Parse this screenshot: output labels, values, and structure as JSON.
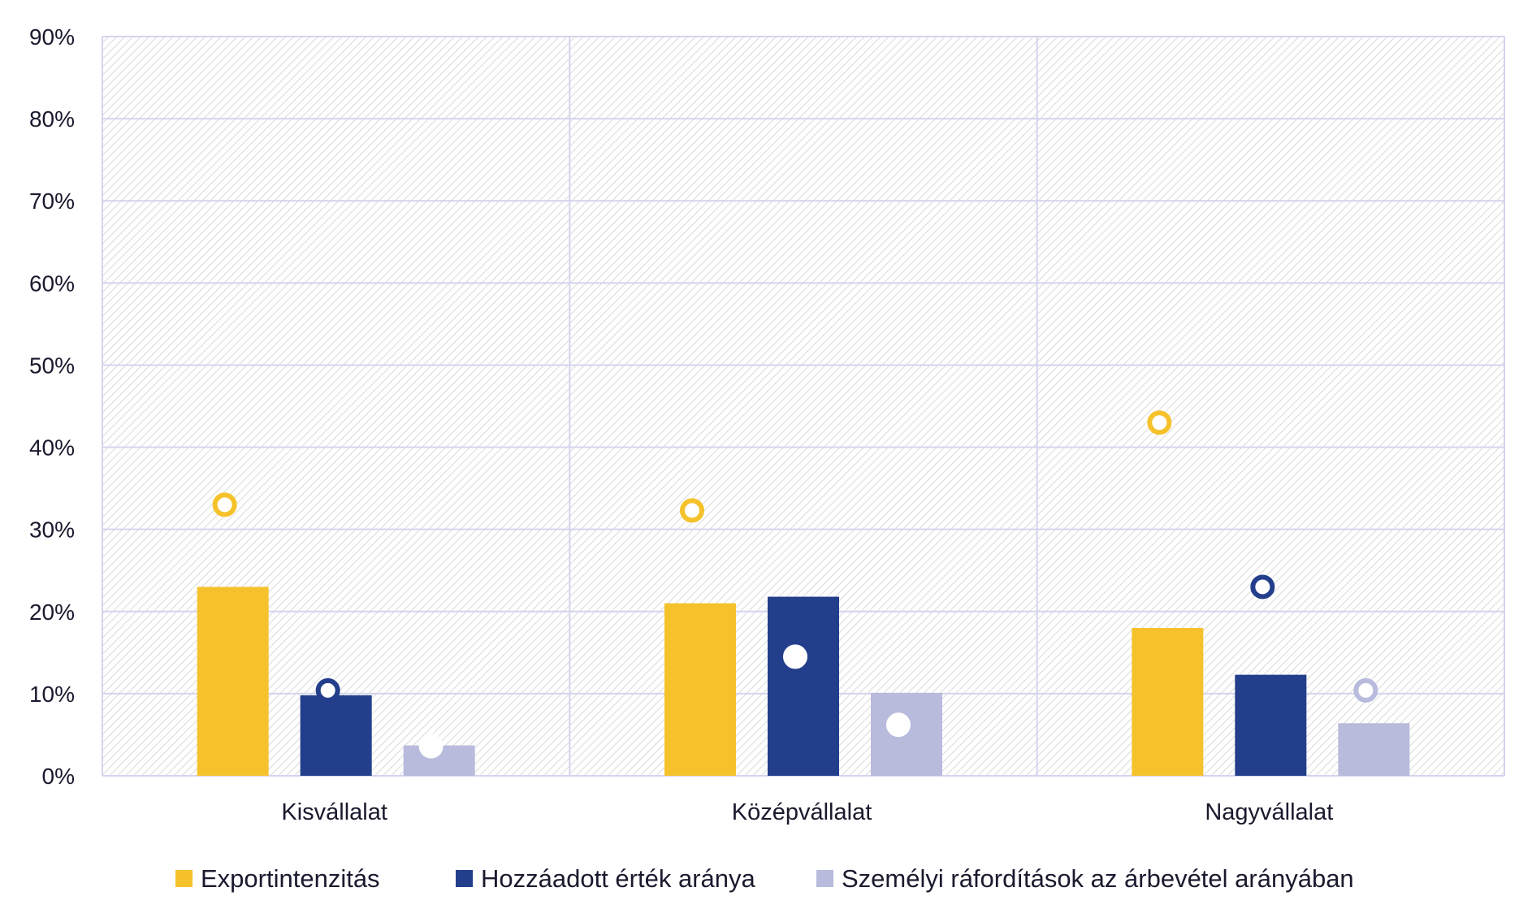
{
  "chart_data": {
    "type": "bar",
    "title": "",
    "xlabel": "",
    "ylabel": "",
    "ylim": [
      0,
      90
    ],
    "y_ticks": [
      "0%",
      "10%",
      "20%",
      "30%",
      "40%",
      "50%",
      "60%",
      "70%",
      "80%",
      "90%"
    ],
    "y_tick_values": [
      0,
      10,
      20,
      30,
      40,
      50,
      60,
      70,
      80,
      90
    ],
    "categories": [
      "Kisvállalat",
      "Középvállalat",
      "Nagyvállalat"
    ],
    "series": [
      {
        "name": "Exportintenzitás",
        "color": "#f5c22c",
        "values": [
          23.0,
          21.0,
          18.0
        ],
        "markers": [
          33.0,
          32.3,
          43.0
        ]
      },
      {
        "name": "Hozzáadott érték aránya",
        "color": "#233e8b",
        "values": [
          9.8,
          21.8,
          12.3
        ],
        "markers": [
          10.4,
          14.5,
          23.0
        ]
      },
      {
        "name": "Személyi ráfordítások az árbevétel arányában",
        "color": "#b8bbdc",
        "values": [
          3.7,
          10.1,
          6.4
        ],
        "markers": [
          3.6,
          6.2,
          10.4
        ]
      }
    ],
    "grid": true,
    "legend_position": "bottom"
  }
}
